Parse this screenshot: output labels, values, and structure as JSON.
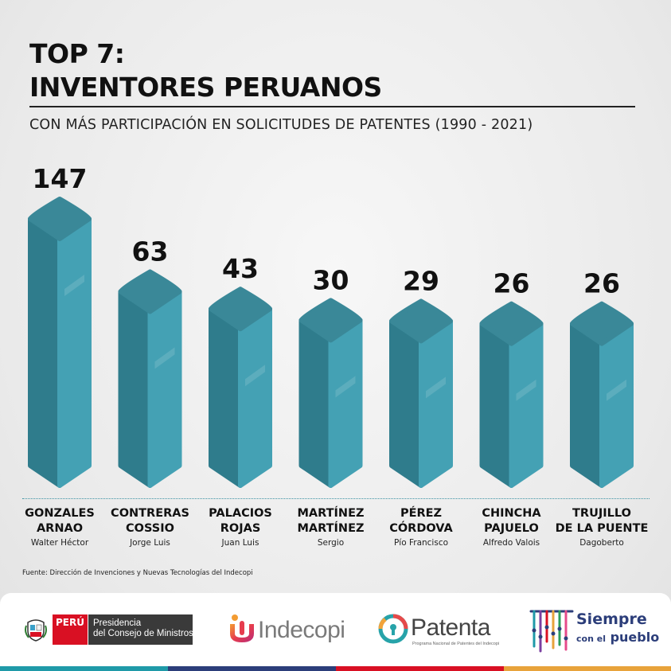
{
  "header": {
    "title_line1": "TOP 7:",
    "title_line2": "INVENTORES PERUANOS",
    "subtitle": "CON MÁS PARTICIPACIÓN EN SOLICITUDES DE PATENTES (1990 - 2021)"
  },
  "chart_data": {
    "type": "bar",
    "categories": [
      "GONZALES ARNAO",
      "CONTRERAS COSSIO",
      "PALACIOS ROJAS",
      "MARTÍNEZ MARTÍNEZ",
      "PÉREZ CÓRDOVA",
      "CHINCHA PAJUELO",
      "TRUJILLO DE LA PUENTE"
    ],
    "values": [
      147,
      63,
      43,
      30,
      29,
      26,
      26
    ],
    "title": "INVENTORES PERUANOS",
    "xlabel": "",
    "ylabel": "",
    "grid": false,
    "legend": "none"
  },
  "inventors": [
    {
      "surname_line1": "GONZALES",
      "surname_line2": "ARNAO",
      "first_name": "Walter Héctor"
    },
    {
      "surname_line1": "CONTRERAS",
      "surname_line2": "COSSIO",
      "first_name": "Jorge Luis"
    },
    {
      "surname_line1": "PALACIOS",
      "surname_line2": "ROJAS",
      "first_name": "Juan Luis"
    },
    {
      "surname_line1": "MARTÍNEZ",
      "surname_line2": "MARTÍNEZ",
      "first_name": "Sergio"
    },
    {
      "surname_line1": "PÉREZ",
      "surname_line2": "CÓRDOVA",
      "first_name": "Pío Francisco"
    },
    {
      "surname_line1": "CHINCHA",
      "surname_line2": "PAJUELO",
      "first_name": "Alfredo Valois"
    },
    {
      "surname_line1": "TRUJILLO",
      "surname_line2": "DE LA PUENTE",
      "first_name": "Dagoberto"
    }
  ],
  "source_note": "Fuente: Dirección de Invenciones y Nuevas Tecnologías del Indecopi",
  "footer": {
    "peru_label": "PERÚ",
    "pcm_line1": "Presidencia",
    "pcm_line2": "del Consejo de Ministros",
    "indecopi_label": "Indecopi",
    "patenta_label": "Patenta",
    "patenta_sub": "Programa Nacional de Patentes del Indecopi",
    "siempre_line1": "Siempre",
    "siempre_con_el": "con el",
    "siempre_pueblo": "pueblo"
  },
  "colors": {
    "bar_light": "#44a1b4",
    "bar_dark": "#2f7c8c",
    "bar_top": "#3a8898",
    "stripe_colors": [
      "#1f9aa8",
      "#2c3e7a",
      "#d91023",
      "#e8a33b"
    ]
  }
}
